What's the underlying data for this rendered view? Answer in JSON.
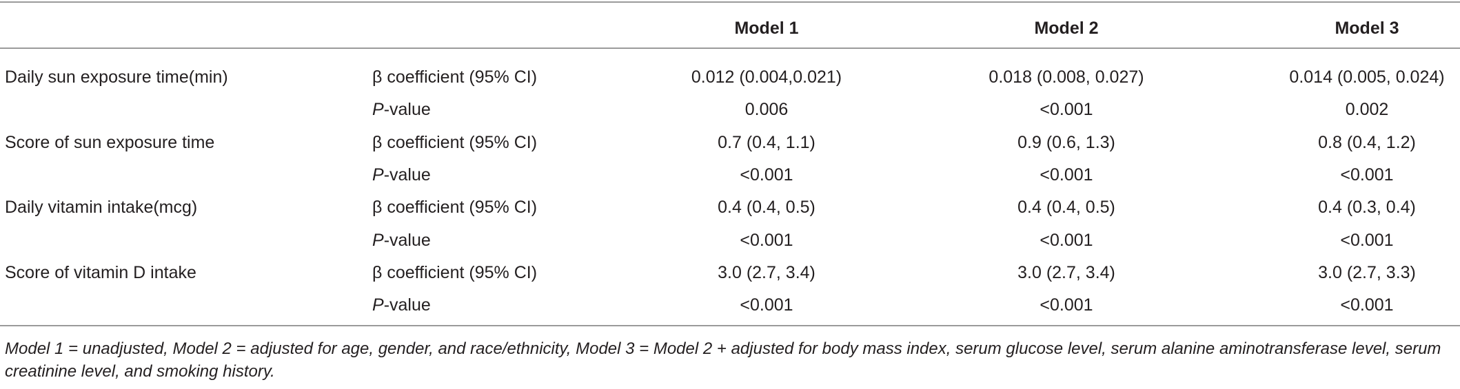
{
  "table": {
    "columns": [
      "Model 1",
      "Model 2",
      "Model 3"
    ],
    "rows": [
      {
        "label": "Daily sun exposure time(min)",
        "stats": [
          {
            "name": "β coefficient (95% CI)",
            "values": [
              "0.012 (0.004,0.021)",
              "0.018 (0.008, 0.027)",
              "0.014 (0.005, 0.024)"
            ]
          },
          {
            "name": "P-value",
            "values": [
              "0.006",
              "<0.001",
              "0.002"
            ]
          }
        ]
      },
      {
        "label": "Score of sun exposure time",
        "stats": [
          {
            "name": "β coefficient (95% CI)",
            "values": [
              "0.7 (0.4, 1.1)",
              "0.9 (0.6, 1.3)",
              "0.8 (0.4, 1.2)"
            ]
          },
          {
            "name": "P-value",
            "values": [
              "<0.001",
              "<0.001",
              "<0.001"
            ]
          }
        ]
      },
      {
        "label": "Daily vitamin intake(mcg)",
        "stats": [
          {
            "name": "β coefficient (95% CI)",
            "values": [
              "0.4 (0.4, 0.5)",
              "0.4 (0.4, 0.5)",
              "0.4 (0.3, 0.4)"
            ]
          },
          {
            "name": "P-value",
            "values": [
              "<0.001",
              "<0.001",
              "<0.001"
            ]
          }
        ]
      },
      {
        "label": "Score of vitamin D intake",
        "stats": [
          {
            "name": "β coefficient (95% CI)",
            "values": [
              "3.0 (2.7, 3.4)",
              "3.0 (2.7, 3.4)",
              "3.0 (2.7, 3.3)"
            ]
          },
          {
            "name": "P-value",
            "values": [
              "<0.001",
              "<0.001",
              "<0.001"
            ]
          }
        ]
      }
    ],
    "footnote": "Model 1 = unadjusted, Model 2 = adjusted for age, gender, and race/ethnicity, Model 3 = Model 2 + adjusted for body mass index, serum glucose level, serum alanine aminotransferase level, serum creatinine level, and smoking history."
  }
}
